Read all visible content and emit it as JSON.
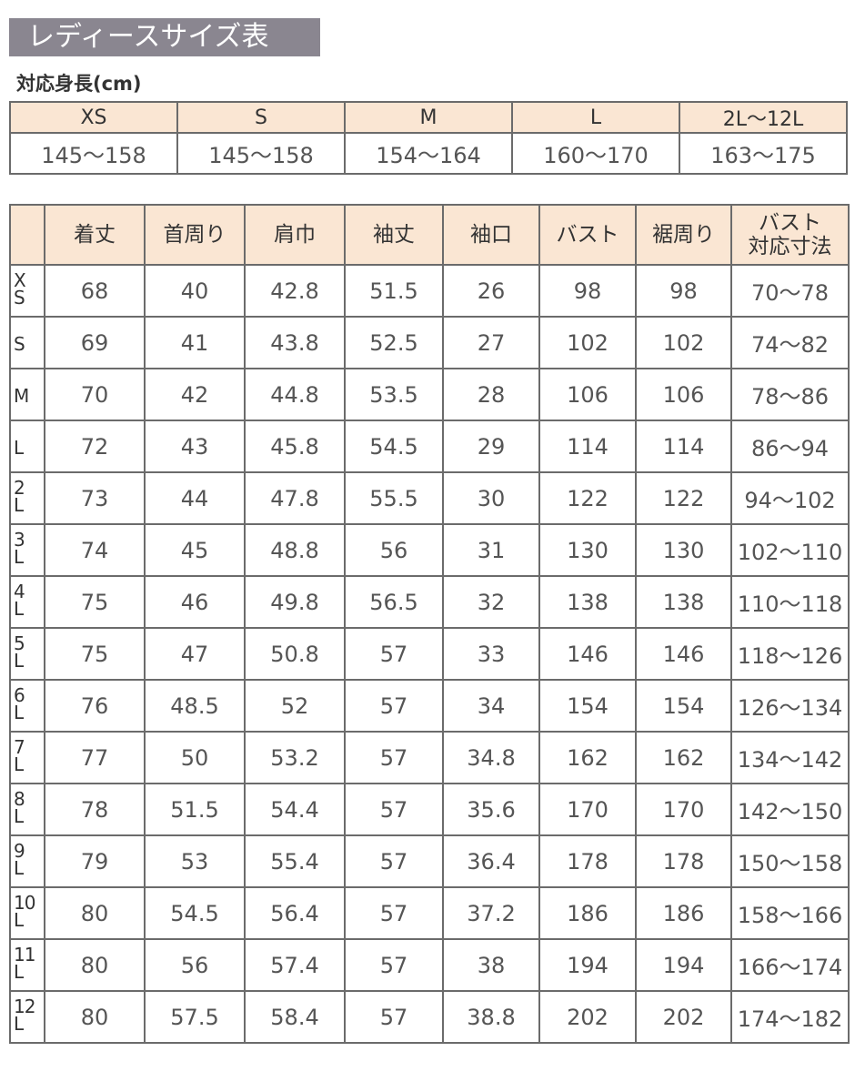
{
  "title": "レディースサイズ表",
  "height_label": "対応身長(cm)",
  "height_table": {
    "sizes": [
      "XS",
      "S",
      "M",
      "L",
      "2L〜12L"
    ],
    "heights": [
      "145〜158",
      "145〜158",
      "154〜164",
      "160〜170",
      "163〜175"
    ]
  },
  "size_table": {
    "headers": [
      "",
      "着丈",
      "首周り",
      "肩巾",
      "袖丈",
      "袖口",
      "バスト",
      "裾周り",
      "バスト\n対応寸法"
    ],
    "rows": [
      [
        "XS",
        "68",
        "40",
        "42.8",
        "51.5",
        "26",
        "98",
        "98",
        "70〜78"
      ],
      [
        "S",
        "69",
        "41",
        "43.8",
        "52.5",
        "27",
        "102",
        "102",
        "74〜82"
      ],
      [
        "M",
        "70",
        "42",
        "44.8",
        "53.5",
        "28",
        "106",
        "106",
        "78〜86"
      ],
      [
        "L",
        "72",
        "43",
        "45.8",
        "54.5",
        "29",
        "114",
        "114",
        "86〜94"
      ],
      [
        "2L",
        "73",
        "44",
        "47.8",
        "55.5",
        "30",
        "122",
        "122",
        "94〜102"
      ],
      [
        "3L",
        "74",
        "45",
        "48.8",
        "56",
        "31",
        "130",
        "130",
        "102〜110"
      ],
      [
        "4L",
        "75",
        "46",
        "49.8",
        "56.5",
        "32",
        "138",
        "138",
        "110〜118"
      ],
      [
        "5L",
        "75",
        "47",
        "50.8",
        "57",
        "33",
        "146",
        "146",
        "118〜126"
      ],
      [
        "6L",
        "76",
        "48.5",
        "52",
        "57",
        "34",
        "154",
        "154",
        "126〜134"
      ],
      [
        "7L",
        "77",
        "50",
        "53.2",
        "57",
        "34.8",
        "162",
        "162",
        "134〜142"
      ],
      [
        "8L",
        "78",
        "51.5",
        "54.4",
        "57",
        "35.6",
        "170",
        "170",
        "142〜150"
      ],
      [
        "9L",
        "79",
        "53",
        "55.4",
        "57",
        "36.4",
        "178",
        "178",
        "150〜158"
      ],
      [
        "10L",
        "80",
        "54.5",
        "56.4",
        "57",
        "37.2",
        "186",
        "186",
        "158〜166"
      ],
      [
        "11L",
        "80",
        "56",
        "57.4",
        "57",
        "38",
        "194",
        "194",
        "166〜174"
      ],
      [
        "12L",
        "80",
        "57.5",
        "58.4",
        "57",
        "38.8",
        "202",
        "202",
        "174〜182"
      ]
    ]
  },
  "colors": {
    "title_bg": "#8a8690",
    "header_bg": "#fae6d3",
    "border": "#6b6b6b"
  }
}
